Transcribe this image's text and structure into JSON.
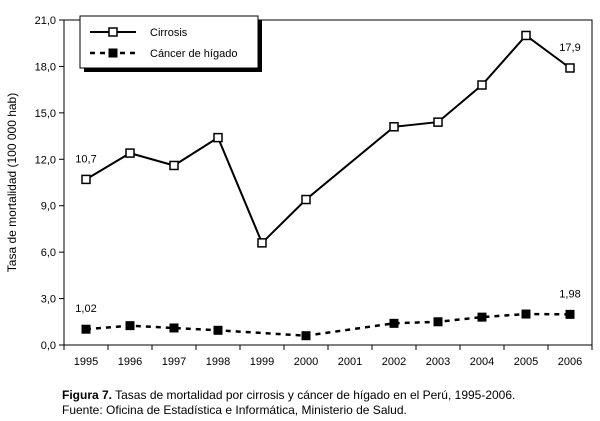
{
  "chart_data": {
    "type": "line",
    "ylabel": "Tasa de mortalidad (100 000 hab)",
    "xlabel": "",
    "categories": [
      "1995",
      "1996",
      "1997",
      "1998",
      "1999",
      "2000",
      "2001",
      "2002",
      "2003",
      "2004",
      "2005",
      "2006"
    ],
    "ylim": [
      0,
      21
    ],
    "yticks": [
      "0,0",
      "3,0",
      "6,0",
      "9,0",
      "12,0",
      "15,0",
      "18,0",
      "21,0"
    ],
    "legend_position": "top-left",
    "grid": false,
    "series": [
      {
        "name": "Cirrosis",
        "color": "#000000",
        "line_style": "solid",
        "marker": "open-square",
        "values": [
          10.7,
          12.4,
          11.6,
          13.4,
          6.6,
          9.4,
          null,
          14.1,
          14.4,
          16.8,
          20.0,
          17.9
        ]
      },
      {
        "name": "Cáncer de hígado",
        "color": "#000000",
        "line_style": "dashed",
        "marker": "filled-square",
        "values": [
          1.02,
          1.25,
          1.1,
          0.95,
          null,
          0.6,
          null,
          1.4,
          1.5,
          1.8,
          2.0,
          1.98
        ]
      }
    ],
    "annotations": [
      "10,7",
      "17,9",
      "1,02",
      "1,98"
    ]
  },
  "caption": {
    "figure_label": "Figura 7.",
    "figure_text": " Tasas de mortalidad por cirrosis y cáncer de hígado en el Perú, 1995-2006.",
    "source": "Fuente: Oficina de Estadística e Informática, Ministerio de Salud."
  }
}
